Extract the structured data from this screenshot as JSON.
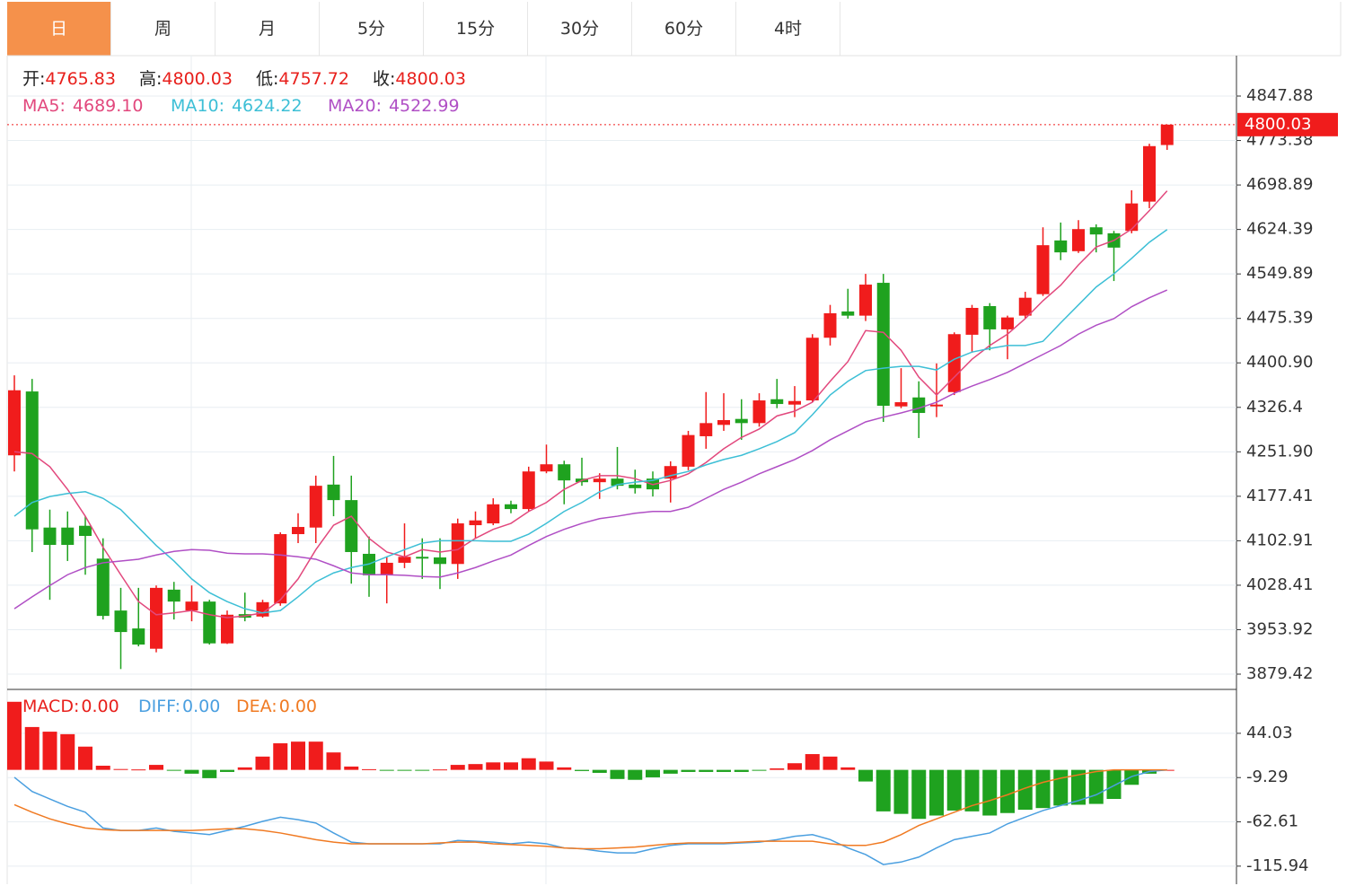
{
  "tabs": {
    "items": [
      "日",
      "周",
      "月",
      "5分",
      "15分",
      "30分",
      "60分",
      "4时"
    ],
    "active": 0
  },
  "chart_data": [
    {
      "type": "candlestick",
      "ohlc_labels": [
        "开:",
        "高:",
        "低:",
        "收:"
      ],
      "up_color": "#f01c1c",
      "down_color": "#1fa21f",
      "open": [
        4246,
        4353,
        4125,
        4125,
        4128,
        4073,
        3986,
        3956,
        3922,
        4021,
        3986,
        4001,
        3931,
        3980,
        3976,
        3998,
        4114,
        4125,
        4197,
        4171,
        4081,
        4046,
        4066,
        4076,
        4075,
        4064,
        4129,
        4132,
        4164,
        4156,
        4219,
        4231,
        4207,
        4201,
        4207,
        4197,
        4207,
        4207,
        4227,
        4278,
        4297,
        4307,
        4300,
        4340,
        4331,
        4338,
        4443,
        4487,
        4480,
        4535,
        4328,
        4343,
        4328,
        4352,
        4448,
        4496,
        4457,
        4480,
        4516,
        4606,
        4588,
        4628,
        4618,
        4622,
        4671,
        4765.83
      ],
      "high": [
        4380,
        4374,
        4155,
        4152,
        4144,
        4107,
        4024,
        4024,
        4028,
        4034,
        4028,
        4004,
        3986,
        4016,
        4004,
        4117,
        4149,
        4212,
        4245,
        4212,
        4110,
        4076,
        4132,
        4107,
        4107,
        4140,
        4152,
        4174,
        4170,
        4227,
        4264,
        4237,
        4242,
        4216,
        4260,
        4222,
        4219,
        4236,
        4287,
        4352,
        4350,
        4340,
        4350,
        4374,
        4362,
        4449,
        4498,
        4525,
        4550,
        4550,
        4392,
        4370,
        4400,
        4452,
        4498,
        4501,
        4480,
        4520,
        4628,
        4636,
        4640,
        4633,
        4622,
        4690,
        4768,
        4800.03
      ],
      "low": [
        4219,
        4084,
        4004,
        4069,
        4046,
        3971,
        3888,
        3926,
        3916,
        3971,
        3968,
        3929,
        3930,
        3968,
        3974,
        3994,
        4099,
        4099,
        4144,
        4031,
        4009,
        3998,
        4057,
        4039,
        4022,
        4039,
        4107,
        4129,
        4149,
        4152,
        4216,
        4164,
        4195,
        4173,
        4189,
        4182,
        4177,
        4167,
        4221,
        4257,
        4287,
        4272,
        4294,
        4325,
        4310,
        4335,
        4430,
        4475,
        4471,
        4302,
        4325,
        4275,
        4310,
        4347,
        4418,
        4422,
        4407,
        4475,
        4513,
        4573,
        4585,
        4586,
        4538,
        4618,
        4660,
        4757.72
      ],
      "close": [
        4355,
        4122,
        4096,
        4096,
        4111,
        3977,
        3950,
        3929,
        4024,
        4001,
        4001,
        3931,
        3979,
        3974,
        4000,
        4114,
        4126,
        4195,
        4171,
        4084,
        4045,
        4066,
        4076,
        4073,
        4064,
        4132,
        4137,
        4164,
        4156,
        4219,
        4231,
        4204,
        4201,
        4207,
        4195,
        4191,
        4189,
        4228,
        4280,
        4300,
        4305,
        4300,
        4338,
        4332,
        4337,
        4443,
        4484,
        4480,
        4532,
        4329,
        4335,
        4317,
        4331,
        4449,
        4493,
        4457,
        4477,
        4510,
        4598,
        4586,
        4625,
        4616,
        4594,
        4668,
        4764,
        4800.03
      ],
      "series": [
        {
          "name": "MA5:",
          "color": "#e2487d",
          "last_value_label": "4689.10",
          "values": [
            4252,
            4249,
            4227,
            4189,
            4144,
            4092,
            4046,
            4001,
            3979,
            3982,
            3986,
            3979,
            3974,
            3977,
            3982,
            4004,
            4039,
            4088,
            4129,
            4144,
            4107,
            4084,
            4076,
            4088,
            4084,
            4088,
            4107,
            4122,
            4132,
            4152,
            4167,
            4189,
            4204,
            4212,
            4212,
            4207,
            4197,
            4204,
            4215,
            4234,
            4257,
            4276,
            4290,
            4312,
            4320,
            4335,
            4370,
            4403,
            4455,
            4452,
            4422,
            4377,
            4347,
            4377,
            4407,
            4430,
            4449,
            4475,
            4505,
            4531,
            4565,
            4595,
            4606,
            4625,
            4656,
            4689.1
          ]
        },
        {
          "name": "MA10:",
          "color": "#3dbfd6",
          "last_value_label": "4624.22",
          "values": [
            4144,
            4167,
            4177,
            4182,
            4185,
            4174,
            4155,
            4125,
            4095,
            4069,
            4039,
            4016,
            4001,
            3989,
            3982,
            3986,
            4009,
            4034,
            4049,
            4058,
            4064,
            4076,
            4088,
            4099,
            4103,
            4103,
            4103,
            4102,
            4102,
            4114,
            4132,
            4152,
            4167,
            4185,
            4197,
            4201,
            4204,
            4212,
            4219,
            4230,
            4239,
            4246,
            4257,
            4269,
            4284,
            4314,
            4347,
            4370,
            4388,
            4392,
            4395,
            4395,
            4389,
            4407,
            4419,
            4425,
            4430,
            4430,
            4437,
            4468,
            4498,
            4528,
            4550,
            4576,
            4603,
            4624.22
          ]
        },
        {
          "name": "MA20:",
          "color": "#b04fc5",
          "last_value_label": "4522.99",
          "values": [
            3989,
            4009,
            4028,
            4046,
            4058,
            4066,
            4069,
            4072,
            4079,
            4085,
            4088,
            4087,
            4082,
            4081,
            4081,
            4079,
            4076,
            4072,
            4061,
            4049,
            4046,
            4046,
            4045,
            4043,
            4042,
            4049,
            4058,
            4069,
            4079,
            4095,
            4110,
            4122,
            4132,
            4140,
            4144,
            4149,
            4152,
            4152,
            4159,
            4174,
            4189,
            4201,
            4215,
            4227,
            4239,
            4254,
            4272,
            4287,
            4302,
            4310,
            4317,
            4325,
            4335,
            4350,
            4362,
            4373,
            4385,
            4400,
            4415,
            4430,
            4449,
            4464,
            4475,
            4495,
            4510,
            4522.99
          ]
        }
      ],
      "ylim": [
        3853.87,
        4915.55
      ],
      "yticks": [
        4847.88,
        4773.38,
        4698.89,
        4624.39,
        4549.89,
        4475.39,
        {
          "value": 4400.9,
          "label": "4400.90"
        },
        4326.4,
        {
          "value": 4251.9,
          "label": "4251.90"
        },
        4177.41,
        4102.91,
        4028.41,
        3953.92,
        3879.42
      ],
      "grid": true,
      "last_price_line": true
    },
    {
      "type": "macd",
      "up_color": "#f01c1c",
      "down_color": "#1fa21f",
      "series": [
        {
          "name": "MACD:",
          "color": "#e8201c",
          "style": "bar",
          "last_value_label": "0.00",
          "values": [
            82,
            51.6,
            46,
            43,
            28,
            5,
            1,
            0.5,
            6,
            -0.3,
            -4.6,
            -10,
            -2.5,
            3,
            16,
            32,
            34,
            34,
            21,
            4,
            0.8,
            -0.3,
            -0.3,
            -0.3,
            0.5,
            6,
            7,
            9,
            9,
            14,
            10,
            3,
            -1.4,
            -3.6,
            -11,
            -12,
            -9,
            -4.6,
            -2.5,
            -2.5,
            -2.5,
            -2.5,
            -0.3,
            1.8,
            8,
            19,
            16,
            3,
            -14,
            -50,
            -53,
            -59,
            -55,
            -49,
            -50,
            -55,
            -52,
            -48,
            -46,
            -43,
            -42,
            -41,
            -35,
            -18,
            -4.6,
            0
          ]
        },
        {
          "name": "DIFF:",
          "color": "#4a9fe0",
          "style": "line",
          "last_value_label": "0.00",
          "values": [
            -9,
            -26,
            -35,
            -44,
            -51,
            -70,
            -73,
            -73,
            -70,
            -74,
            -76,
            -78,
            -73,
            -68,
            -62,
            -57,
            -60,
            -64,
            -76,
            -87,
            -89,
            -89,
            -89,
            -89,
            -89,
            -85,
            -86,
            -87,
            -89,
            -87,
            -89,
            -94,
            -95,
            -98,
            -100,
            -100,
            -95,
            -91,
            -89,
            -89,
            -89,
            -88,
            -87,
            -84,
            -80,
            -78,
            -84,
            -94,
            -102,
            -114,
            -111,
            -105,
            -94,
            -84,
            -80,
            -76,
            -65,
            -57,
            -49,
            -43,
            -37,
            -30,
            -19,
            -8,
            -2,
            0
          ]
        },
        {
          "name": "DEA:",
          "color": "#f07a22",
          "style": "line",
          "last_value_label": "0.00",
          "values": [
            -42,
            -51,
            -59,
            -65,
            -70,
            -72,
            -73,
            -73,
            -73,
            -73,
            -73,
            -72,
            -71,
            -71,
            -73,
            -76,
            -80,
            -84,
            -87,
            -89,
            -89,
            -89,
            -89,
            -89,
            -88,
            -87,
            -87,
            -89,
            -90,
            -91,
            -92,
            -94,
            -95,
            -95,
            -94,
            -93,
            -91,
            -89,
            -88,
            -88,
            -88,
            -87,
            -86,
            -86,
            -86,
            -86,
            -89,
            -91,
            -91,
            -87,
            -78,
            -67,
            -59,
            -51,
            -43,
            -37,
            -30,
            -22,
            -15,
            -10,
            -6,
            -2,
            0,
            0,
            0,
            0
          ]
        }
      ],
      "ylim": [
        -137.7,
        96.9
      ],
      "yticks": [
        44.03,
        -9.29,
        -62.61,
        -115.94
      ]
    }
  ]
}
